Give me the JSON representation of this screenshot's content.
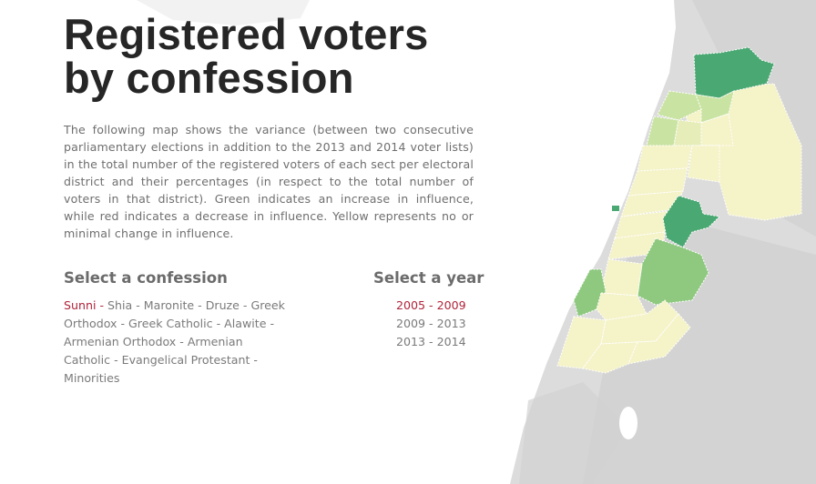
{
  "title_line1": "Registered voters",
  "title_line2": "by confession",
  "description": "The following map shows the variance (between two consecutive parliamentary elections in addition to the 2013 and 2014 voter lists) in the total number of the registered voters of each sect per electoral district and their percentages (in respect to the total number of voters in that district). Green indicates an increase in influence, while red indicates a decrease in influence. Yellow represents no or minimal change in influence.",
  "confession_heading": "Select a confession",
  "year_heading": "Select a year",
  "confessions": [
    "Sunni",
    "Shia",
    "Maronite",
    "Druze",
    "Greek Orthodox",
    "Greek Catholic",
    "Alawite",
    "Armenian Orthodox",
    "Armenian Catholic",
    "Evangelical Protestant",
    "Minorities"
  ],
  "selected_confession": "Sunni",
  "separator": " - ",
  "years": [
    "2005 - 2009",
    "2009 - 2013",
    "2013 - 2014"
  ],
  "selected_year": "2005 - 2009",
  "colors": {
    "increase_strong": "#4aa872",
    "increase_medium": "#8ec97f",
    "increase_light": "#c9e3a2",
    "no_change": "#f5f3c8",
    "selected_text": "#b0243a",
    "terrain": "#d9d9d9"
  }
}
